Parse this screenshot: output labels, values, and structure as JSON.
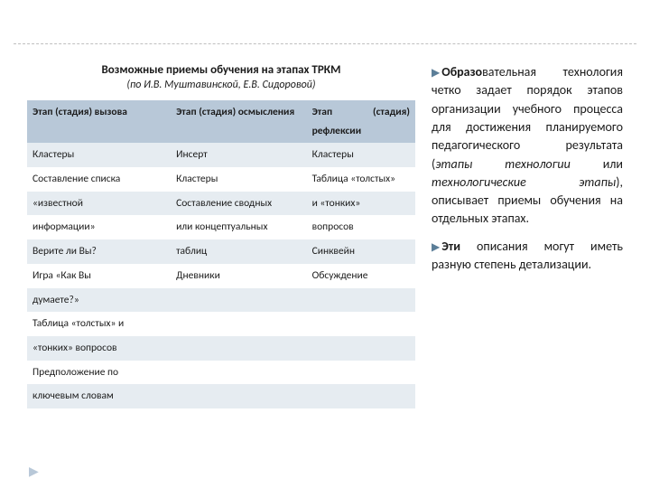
{
  "colors": {
    "header_bg": "#b8c8d8",
    "row_alt_bg": "#e6ecf1",
    "row_plain_bg": "#ffffff",
    "text": "#1b1b1b",
    "bullet": "#5b7e98",
    "divider": "#bfbfbf"
  },
  "fonts": {
    "body_family": "Calibri, Arial, sans-serif",
    "title_size_pt": 13,
    "sub_size_pt": 12,
    "table_size_pt": 11.5,
    "right_size_pt": 14
  },
  "table": {
    "type": "table",
    "title": "Возможные приемы обучения на этапах ТРКМ",
    "subtitle": "(по И.В. Муштавинской, Е.В. Сидоровой)",
    "columns": [
      "Этап (стадия) вызова",
      "Этап (стадия) осмысления",
      "Этап (стадия) рефлексии"
    ],
    "rows": [
      [
        "Кластеры",
        "Инсерт",
        "Кластеры"
      ],
      [
        "Составление списка",
        "Кластеры",
        "Таблица «толстых»"
      ],
      [
        "«известной",
        "Составление сводных",
        "и «тонких»"
      ],
      [
        "информации»",
        "или концептуальных",
        "вопросов"
      ],
      [
        "Верите ли Вы?",
        "таблиц",
        "Синквейн"
      ],
      [
        "Игра «Как Вы",
        "Дневники",
        "Обсуждение"
      ],
      [
        "думаете?»",
        "",
        ""
      ],
      [
        "Таблица «толстых» и",
        "",
        ""
      ],
      [
        "«тонких» вопросов",
        "",
        ""
      ],
      [
        "Предположение по",
        "",
        ""
      ],
      [
        "ключевым словам",
        "",
        ""
      ]
    ],
    "row_backgrounds": [
      "alt",
      "plain",
      "alt",
      "plain",
      "alt",
      "plain",
      "alt",
      "plain",
      "alt",
      "plain",
      "alt"
    ]
  },
  "right": {
    "p1_prefix": "Образо",
    "p1_rest": "вательная технология четко задает порядок этапов организации учебного процесса для достижения планируемого педагогического результата (",
    "p1_italic": "этапы технологии",
    "p1_mid": " или ",
    "p1_italic2": "технологические этапы",
    "p1_end": "), описывает приемы обучения на отдельных этапах.",
    "p2_prefix": "Эти",
    "p2_rest": " описания могут иметь разную степень детализации."
  }
}
